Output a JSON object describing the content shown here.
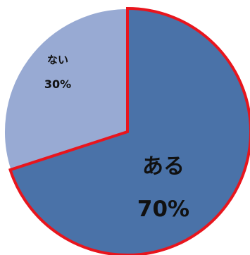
{
  "chart_data": {
    "type": "pie",
    "start_angle_deg": 0,
    "direction": "clockwise",
    "slices": [
      {
        "label": "ある",
        "value": 70,
        "percent_label": "70%",
        "color": "#4a72a8",
        "outline": "#e8151d"
      },
      {
        "label": "ない",
        "value": 30,
        "percent_label": "30%",
        "color": "#98aad3",
        "outline": "#ffffff"
      }
    ]
  }
}
